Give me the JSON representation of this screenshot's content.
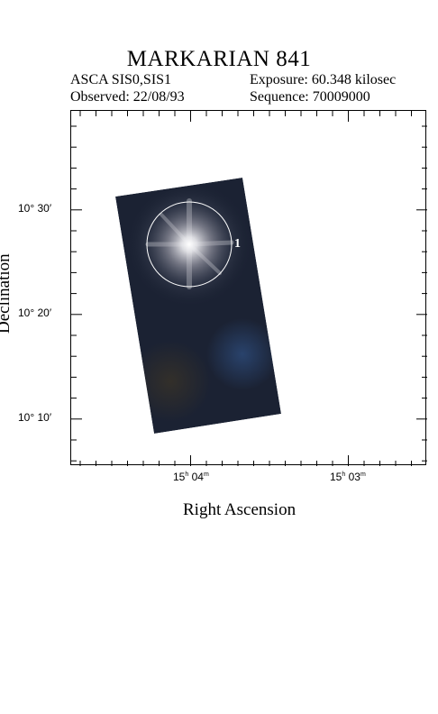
{
  "header": {
    "title": "MARKARIAN 841",
    "instrument": "ASCA SIS0,SIS1",
    "exposure": "Exposure: 60.348 kilosec",
    "observed": "Observed: 22/08/93",
    "sequence": "Sequence: 70009000"
  },
  "axes": {
    "x_title": "Right Ascension",
    "y_title": "Declination",
    "x_ticks": [
      {
        "h": "15",
        "m": "04",
        "label": "15h 04m"
      },
      {
        "h": "15",
        "m": "03",
        "label": "15h 03m"
      }
    ],
    "y_ticks": [
      "10° 30′",
      "10° 20′",
      "10° 10′"
    ]
  },
  "source": {
    "marker_label": "1"
  },
  "colors": {
    "image_background": "#1b2233",
    "source_core": "#f4f4f4",
    "circle": "#ffffff"
  }
}
